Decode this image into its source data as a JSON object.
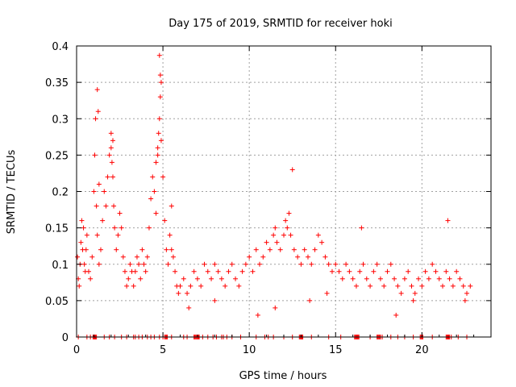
{
  "chart_data": {
    "type": "scatter",
    "title": "Day 175 of 2019, SRMTID for receiver hoki",
    "xlabel": "GPS time / hours",
    "ylabel": "SRMTID / TECUs",
    "xlim": [
      0,
      24
    ],
    "ylim": [
      0,
      0.4
    ],
    "x_ticks": [
      0,
      5,
      10,
      15,
      20
    ],
    "x_tick_labels": [
      "0",
      "5",
      "10",
      "15",
      "20"
    ],
    "y_ticks": [
      0,
      0.05,
      0.1,
      0.15,
      0.2,
      0.25,
      0.3,
      0.35,
      0.4
    ],
    "y_tick_labels": [
      "0",
      "0.05",
      "0.1",
      "0.15",
      "0.2",
      "0.25",
      "0.3",
      "0.35",
      "0.4"
    ],
    "grid": true,
    "marker": "+",
    "color": "#ff0000",
    "series": [
      {
        "name": "SRMTID",
        "x": [
          0.05,
          0.1,
          0.15,
          0.2,
          0.25,
          0.3,
          0.35,
          0.4,
          0.45,
          0.5,
          0.55,
          0.6,
          0.7,
          0.8,
          0.9,
          1.0,
          1.05,
          1.1,
          1.15,
          1.2,
          1.3,
          1.4,
          1.5,
          1.6,
          1.7,
          1.8,
          1.9,
          2.0,
          2.05,
          2.1,
          2.15,
          2.2,
          2.3,
          2.4,
          2.5,
          2.6,
          2.7,
          2.8,
          2.9,
          3.0,
          3.1,
          3.2,
          3.3,
          3.4,
          3.5,
          3.6,
          3.7,
          3.8,
          3.9,
          4.0,
          4.1,
          4.2,
          4.3,
          4.4,
          4.5,
          4.6,
          4.7,
          4.75,
          4.8,
          4.85,
          4.9,
          5.0,
          5.1,
          5.2,
          5.3,
          5.4,
          5.5,
          5.6,
          5.7,
          5.8,
          5.9,
          6.0,
          6.2,
          6.4,
          6.6,
          6.8,
          7.0,
          7.2,
          7.4,
          7.6,
          7.8,
          8.0,
          8.2,
          8.4,
          8.6,
          8.8,
          9.0,
          9.2,
          9.4,
          9.6,
          9.8,
          10.0,
          10.2,
          10.4,
          10.6,
          10.8,
          11.0,
          11.2,
          11.4,
          11.5,
          11.6,
          11.8,
          12.0,
          12.1,
          12.2,
          12.3,
          12.4,
          12.6,
          12.8,
          13.0,
          13.2,
          13.4,
          13.6,
          13.8,
          14.0,
          14.2,
          14.4,
          14.6,
          14.8,
          15.0,
          15.2,
          15.4,
          15.6,
          15.8,
          16.0,
          16.2,
          16.4,
          16.6,
          16.8,
          17.0,
          17.2,
          17.4,
          17.6,
          17.8,
          18.0,
          18.2,
          18.4,
          18.6,
          18.8,
          19.0,
          19.2,
          19.4,
          19.6,
          19.8,
          20.0,
          20.2,
          20.4,
          20.6,
          20.8,
          21.0,
          21.2,
          21.4,
          21.6,
          21.8,
          22.0,
          22.2,
          22.4,
          22.6,
          22.8,
          1.2,
          1.25,
          4.8,
          4.85,
          4.9,
          2.0,
          2.1,
          4.6,
          4.7,
          1.3,
          5.5,
          6.5,
          8.0,
          10.5,
          11.5,
          12.5,
          13.5,
          14.5,
          16.5,
          18.5,
          19.5,
          21.5,
          22.5
        ],
        "y": [
          0.11,
          0.08,
          0.07,
          0.1,
          0.13,
          0.16,
          0.12,
          0.15,
          0.1,
          0.09,
          0.12,
          0.14,
          0.09,
          0.08,
          0.11,
          0.2,
          0.25,
          0.3,
          0.18,
          0.14,
          0.1,
          0.12,
          0.16,
          0.2,
          0.18,
          0.22,
          0.25,
          0.26,
          0.24,
          0.22,
          0.18,
          0.15,
          0.12,
          0.14,
          0.17,
          0.15,
          0.11,
          0.09,
          0.07,
          0.08,
          0.1,
          0.09,
          0.07,
          0.09,
          0.11,
          0.1,
          0.08,
          0.12,
          0.1,
          0.09,
          0.11,
          0.15,
          0.19,
          0.22,
          0.2,
          0.17,
          0.25,
          0.28,
          0.3,
          0.33,
          0.27,
          0.22,
          0.16,
          0.12,
          0.1,
          0.14,
          0.12,
          0.11,
          0.09,
          0.07,
          0.06,
          0.07,
          0.08,
          0.06,
          0.07,
          0.09,
          0.08,
          0.07,
          0.1,
          0.09,
          0.08,
          0.1,
          0.09,
          0.08,
          0.07,
          0.09,
          0.1,
          0.08,
          0.07,
          0.09,
          0.1,
          0.11,
          0.09,
          0.12,
          0.1,
          0.11,
          0.13,
          0.12,
          0.14,
          0.15,
          0.13,
          0.12,
          0.14,
          0.16,
          0.15,
          0.17,
          0.14,
          0.12,
          0.11,
          0.1,
          0.12,
          0.11,
          0.1,
          0.12,
          0.14,
          0.13,
          0.11,
          0.1,
          0.09,
          0.1,
          0.09,
          0.08,
          0.1,
          0.09,
          0.08,
          0.07,
          0.09,
          0.1,
          0.08,
          0.07,
          0.09,
          0.1,
          0.08,
          0.07,
          0.09,
          0.1,
          0.08,
          0.07,
          0.06,
          0.08,
          0.09,
          0.07,
          0.06,
          0.08,
          0.07,
          0.09,
          0.08,
          0.1,
          0.09,
          0.08,
          0.07,
          0.09,
          0.08,
          0.07,
          0.09,
          0.08,
          0.07,
          0.06,
          0.07,
          0.34,
          0.31,
          0.387,
          0.36,
          0.35,
          0.28,
          0.27,
          0.24,
          0.26,
          0.21,
          0.18,
          0.04,
          0.05,
          0.03,
          0.04,
          0.23,
          0.05,
          0.06,
          0.15,
          0.03,
          0.05,
          0.16,
          0.05
        ]
      }
    ],
    "zero_markers_x": [
      0.1,
      0.6,
      0.8,
      0.95,
      1.0,
      1.05,
      1.1,
      1.15,
      1.6,
      1.9,
      2.2,
      2.6,
      2.9,
      3.3,
      3.4,
      3.6,
      3.8,
      4.1,
      4.3,
      4.5,
      4.8,
      5.0,
      5.1,
      5.15,
      5.2,
      5.25,
      5.5,
      6.2,
      6.4,
      6.8,
      6.85,
      6.9,
      6.95,
      7.0,
      7.05,
      7.1,
      7.3,
      7.6,
      7.9,
      8.1,
      8.4,
      8.5,
      8.7,
      9.0,
      9.5,
      10.4,
      10.9,
      11.1,
      11.4,
      12.0,
      12.5,
      12.9,
      12.95,
      13.0,
      13.05,
      13.1,
      13.6,
      14.6,
      15.3,
      16.1,
      16.15,
      16.2,
      16.25,
      16.3,
      16.35,
      17.0,
      17.4,
      17.45,
      17.5,
      17.55,
      17.6,
      17.7,
      18.2,
      18.6,
      19.0,
      19.5,
      19.9,
      19.95,
      20.0,
      20.05,
      20.6,
      21.4,
      21.45,
      21.5,
      21.55,
      21.6,
      21.7,
      22.1,
      22.6
    ]
  }
}
